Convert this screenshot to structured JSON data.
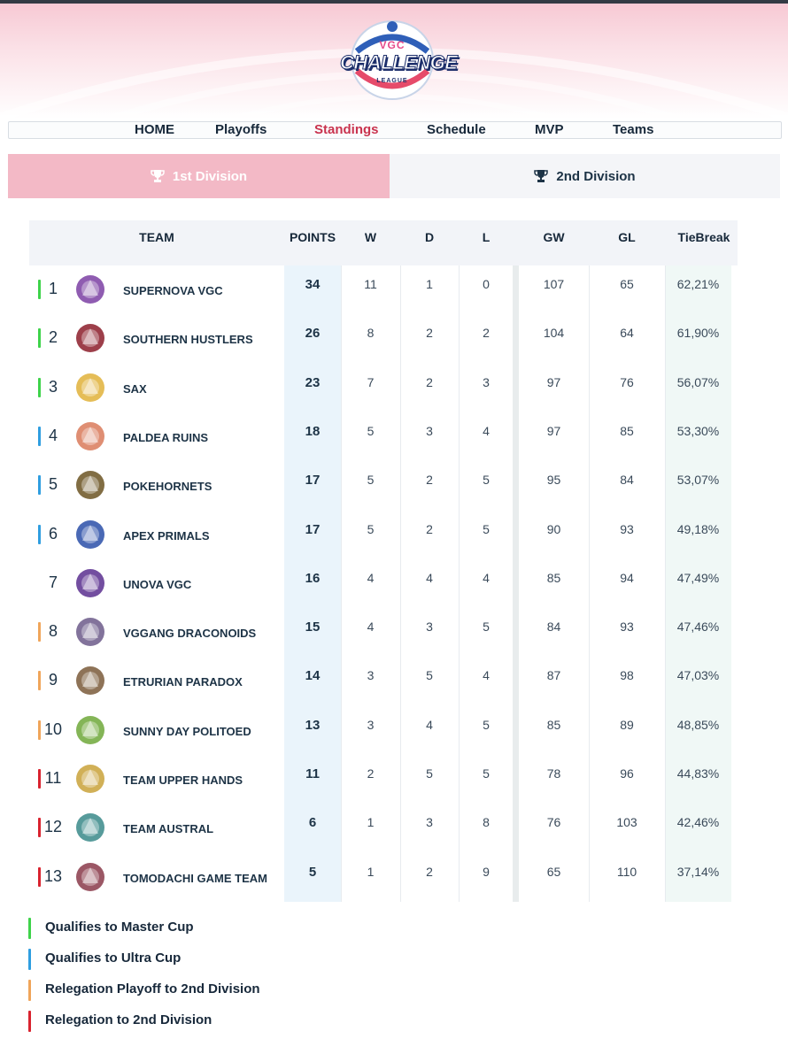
{
  "logo": {
    "top": "VGC",
    "main": "CHALLENGE",
    "bottom": "LEAGUE"
  },
  "nav": [
    {
      "label": "HOME",
      "active": false
    },
    {
      "label": "Playoffs",
      "active": false
    },
    {
      "label": "Standings",
      "active": true
    },
    {
      "label": "Schedule",
      "active": false
    },
    {
      "label": "MVP",
      "active": false
    },
    {
      "label": "Teams",
      "active": false
    }
  ],
  "divisions": [
    {
      "label": "1st Division",
      "active": true,
      "icon": "trophy-icon"
    },
    {
      "label": "2nd Division",
      "active": false,
      "icon": "trophy-icon"
    }
  ],
  "table": {
    "headers": {
      "team": "TEAM",
      "points": "POINTS",
      "w": "W",
      "d": "D",
      "l": "L",
      "gw": "GW",
      "gl": "GL",
      "tiebreak": "TieBreak"
    },
    "rows": [
      {
        "rank": "1",
        "team": "SUPERNOVA VGC",
        "points": "34",
        "w": "11",
        "d": "1",
        "l": "0",
        "gw": "107",
        "gl": "65",
        "tiebreak": "62,21%",
        "status": "master",
        "logo_color": "#7b3fa3"
      },
      {
        "rank": "2",
        "team": "SOUTHERN HUSTLERS",
        "points": "26",
        "w": "8",
        "d": "2",
        "l": "2",
        "gw": "104",
        "gl": "64",
        "tiebreak": "61,90%",
        "status": "master",
        "logo_color": "#8c1d2a"
      },
      {
        "rank": "3",
        "team": "SAX",
        "points": "23",
        "w": "7",
        "d": "2",
        "l": "3",
        "gw": "97",
        "gl": "76",
        "tiebreak": "56,07%",
        "status": "master",
        "logo_color": "#e0b23a"
      },
      {
        "rank": "4",
        "team": "PALDEA RUINS",
        "points": "18",
        "w": "5",
        "d": "3",
        "l": "4",
        "gw": "97",
        "gl": "85",
        "tiebreak": "53,30%",
        "status": "ultra",
        "logo_color": "#d97a5a"
      },
      {
        "rank": "5",
        "team": "POKEHORNETS",
        "points": "17",
        "w": "5",
        "d": "2",
        "l": "5",
        "gw": "95",
        "gl": "84",
        "tiebreak": "53,07%",
        "status": "ultra",
        "logo_color": "#6b5422"
      },
      {
        "rank": "6",
        "team": "APEX PRIMALS",
        "points": "17",
        "w": "5",
        "d": "2",
        "l": "5",
        "gw": "90",
        "gl": "93",
        "tiebreak": "49,18%",
        "status": "ultra",
        "logo_color": "#2a4fa8"
      },
      {
        "rank": "7",
        "team": "UNOVA VGC",
        "points": "16",
        "w": "4",
        "d": "4",
        "l": "4",
        "gw": "85",
        "gl": "94",
        "tiebreak": "47,49%",
        "status": "none",
        "logo_color": "#5a2f8f"
      },
      {
        "rank": "8",
        "team": "VGGANG DRACONOIDS",
        "points": "15",
        "w": "4",
        "d": "3",
        "l": "5",
        "gw": "84",
        "gl": "93",
        "tiebreak": "47,46%",
        "status": "relegation-playoff",
        "logo_color": "#6c5b8a"
      },
      {
        "rank": "9",
        "team": "ETRURIAN PARADOX",
        "points": "14",
        "w": "3",
        "d": "5",
        "l": "4",
        "gw": "87",
        "gl": "98",
        "tiebreak": "47,03%",
        "status": "relegation-playoff",
        "logo_color": "#7a5a3a"
      },
      {
        "rank": "10",
        "team": "SUNNY DAY POLITOED",
        "points": "13",
        "w": "3",
        "d": "4",
        "l": "5",
        "gw": "85",
        "gl": "89",
        "tiebreak": "48,85%",
        "status": "relegation-playoff",
        "logo_color": "#6fa83a"
      },
      {
        "rank": "11",
        "team": "TEAM UPPER HANDS",
        "points": "11",
        "w": "2",
        "d": "5",
        "l": "5",
        "gw": "78",
        "gl": "96",
        "tiebreak": "44,83%",
        "status": "relegation",
        "logo_color": "#c9a23a"
      },
      {
        "rank": "12",
        "team": "TEAM AUSTRAL",
        "points": "6",
        "w": "1",
        "d": "3",
        "l": "8",
        "gw": "76",
        "gl": "103",
        "tiebreak": "42,46%",
        "status": "relegation",
        "logo_color": "#3a8a8a"
      },
      {
        "rank": "13",
        "team": "TOMODACHI GAME TEAM",
        "points": "5",
        "w": "1",
        "d": "2",
        "l": "9",
        "gw": "65",
        "gl": "110",
        "tiebreak": "37,14%",
        "status": "relegation",
        "logo_color": "#8a3a4a"
      }
    ]
  },
  "status_colors": {
    "master": "#3ed34a",
    "ultra": "#2f9ee0",
    "relegation-playoff": "#f0a55a",
    "relegation": "#d9232f",
    "none": "transparent"
  },
  "legend": [
    {
      "label": "Qualifies to Master Cup",
      "status": "master"
    },
    {
      "label": "Qualifies to Ultra Cup",
      "status": "ultra"
    },
    {
      "label": "Relegation Playoff to 2nd Division",
      "status": "relegation-playoff"
    },
    {
      "label": "Relegation to 2nd Division",
      "status": "relegation"
    }
  ]
}
